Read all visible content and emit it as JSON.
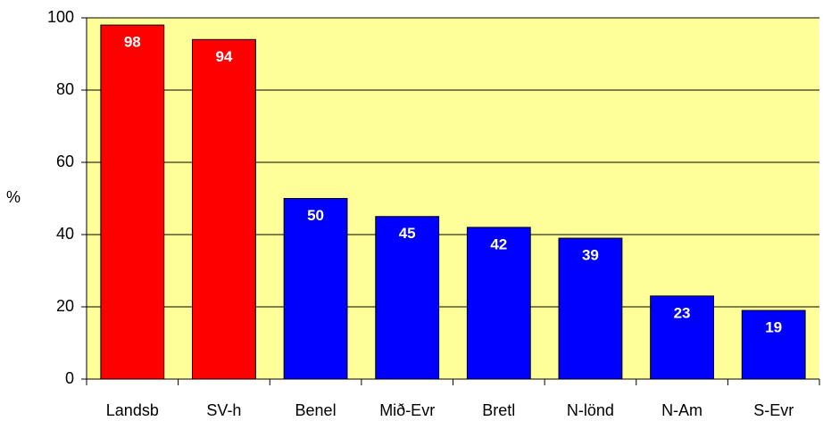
{
  "chart_data": {
    "type": "bar",
    "ylabel": "%",
    "categories": [
      "Landsb",
      "SV-h",
      "Benel",
      "Mið-Evr",
      "Bretl",
      "N-lönd",
      "N-Am",
      "S-Evr"
    ],
    "values": [
      98,
      94,
      50,
      45,
      42,
      39,
      23,
      19
    ],
    "colors": [
      "#ff0000",
      "#ff0000",
      "#0000ff",
      "#0000ff",
      "#0000ff",
      "#0000ff",
      "#0000ff",
      "#0000ff"
    ],
    "plot_background": "#ffff99",
    "ylim": [
      0,
      100
    ],
    "yticks": [
      0,
      20,
      40,
      60,
      80,
      100
    ],
    "grid": true
  }
}
